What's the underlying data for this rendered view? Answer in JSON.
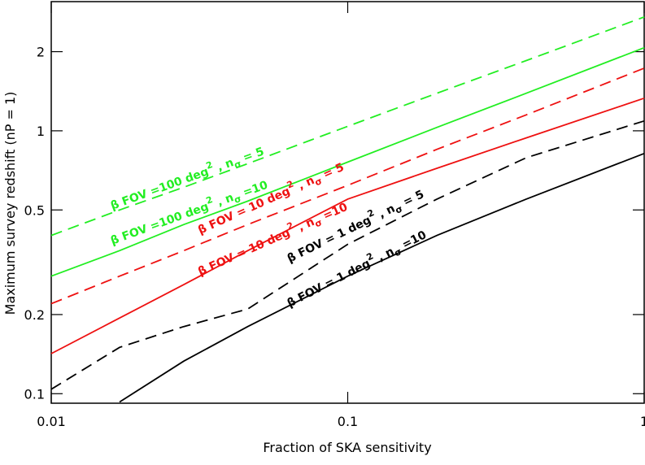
{
  "chart_data": {
    "type": "line",
    "x_label": "Fraction of SKA sensitivity",
    "y_label": "Maximum survey redshift (nP = 1)",
    "log_x": true,
    "log_y": true,
    "xlim": [
      0.01,
      1
    ],
    "ylim": [
      0.092,
      3.1
    ],
    "xticks": [
      0.01,
      0.1,
      1
    ],
    "yticks": [
      0.1,
      0.2,
      0.5,
      1,
      2
    ],
    "x": [
      0.01,
      0.017,
      0.028,
      0.046,
      0.1,
      0.2,
      0.4,
      1
    ],
    "series": [
      {
        "color": "#22ee22",
        "dashed": true,
        "values": [
          0.4,
          0.5,
          0.61,
          0.75,
          1.04,
          1.39,
          1.85,
          2.71
        ]
      },
      {
        "color": "#22ee22",
        "dashed": false,
        "values": [
          0.28,
          0.35,
          0.44,
          0.54,
          0.76,
          1.03,
          1.39,
          2.07
        ]
      },
      {
        "color": "#ee1111",
        "dashed": true,
        "values": [
          0.22,
          0.28,
          0.35,
          0.44,
          0.62,
          0.85,
          1.15,
          1.73
        ]
      },
      {
        "color": "#ee1111",
        "dashed": false,
        "values": [
          0.142,
          0.194,
          0.26,
          0.35,
          0.55,
          0.72,
          0.94,
          1.33
        ]
      },
      {
        "color": "#000000",
        "dashed": true,
        "values": [
          0.104,
          0.15,
          0.18,
          0.21,
          0.37,
          0.55,
          0.79,
          1.09
        ]
      },
      {
        "color": "#000000",
        "dashed": false,
        "values": [
          null,
          0.093,
          0.133,
          0.18,
          0.28,
          0.4,
          0.55,
          0.82
        ]
      }
    ],
    "annotations": [
      {
        "color": "#22ee22",
        "parts": [
          "β FOV =100 deg",
          "2",
          " , n",
          "σ",
          " = 5"
        ]
      },
      {
        "color": "#22ee22",
        "parts": [
          "β FOV =100 deg",
          "2",
          " , n",
          "σ",
          " =10"
        ]
      },
      {
        "color": "#ee1111",
        "parts": [
          "β FOV = 10 deg",
          "2",
          " , n",
          "σ",
          " = 5"
        ]
      },
      {
        "color": "#ee1111",
        "parts": [
          "β FOV = 10 deg",
          "2",
          " , n",
          "σ",
          " =10"
        ]
      },
      {
        "color": "#000000",
        "parts": [
          "β FOV =  1 deg",
          "2",
          " , n",
          "σ",
          " = 5"
        ]
      },
      {
        "color": "#000000",
        "parts": [
          "β FOV =  1 deg",
          "2",
          " , n",
          "σ",
          " =10"
        ]
      }
    ]
  }
}
